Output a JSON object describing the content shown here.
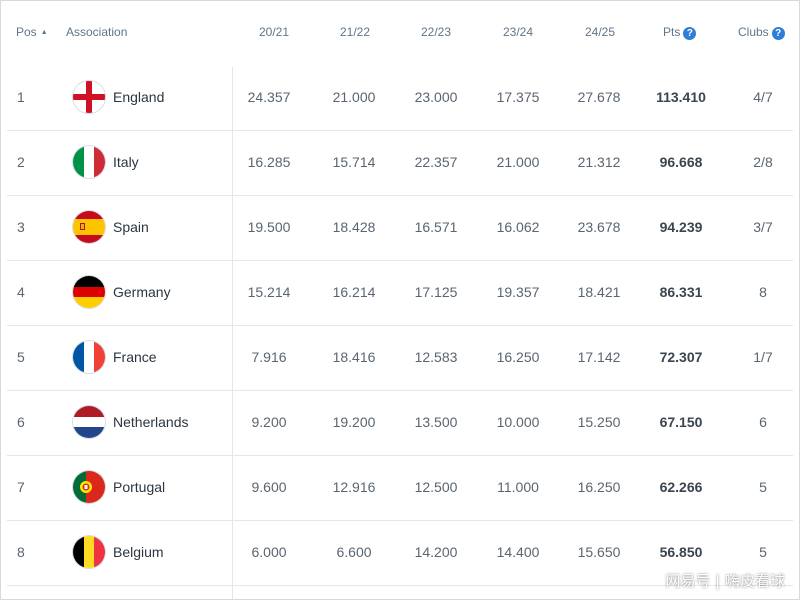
{
  "header": {
    "pos": "Pos",
    "association": "Association",
    "seasons": [
      "20/21",
      "21/22",
      "22/23",
      "23/24",
      "24/25"
    ],
    "pts": "Pts",
    "clubs": "Clubs"
  },
  "rows": [
    {
      "pos": "1",
      "name": "England",
      "flag": "england-flag-icon",
      "s1": "24.357",
      "s2": "21.000",
      "s3": "23.000",
      "s4": "17.375",
      "s5": "27.678",
      "pts": "113.410",
      "clubs": "4/7"
    },
    {
      "pos": "2",
      "name": "Italy",
      "flag": "italy-flag-icon",
      "s1": "16.285",
      "s2": "15.714",
      "s3": "22.357",
      "s4": "21.000",
      "s5": "21.312",
      "pts": "96.668",
      "clubs": "2/8"
    },
    {
      "pos": "3",
      "name": "Spain",
      "flag": "spain-flag-icon",
      "s1": "19.500",
      "s2": "18.428",
      "s3": "16.571",
      "s4": "16.062",
      "s5": "23.678",
      "pts": "94.239",
      "clubs": "3/7"
    },
    {
      "pos": "4",
      "name": "Germany",
      "flag": "germany-flag-icon",
      "s1": "15.214",
      "s2": "16.214",
      "s3": "17.125",
      "s4": "19.357",
      "s5": "18.421",
      "pts": "86.331",
      "clubs": "8"
    },
    {
      "pos": "5",
      "name": "France",
      "flag": "france-flag-icon",
      "s1": "7.916",
      "s2": "18.416",
      "s3": "12.583",
      "s4": "16.250",
      "s5": "17.142",
      "pts": "72.307",
      "clubs": "1/7"
    },
    {
      "pos": "6",
      "name": "Netherlands",
      "flag": "netherlands-flag-icon",
      "s1": "9.200",
      "s2": "19.200",
      "s3": "13.500",
      "s4": "10.000",
      "s5": "15.250",
      "pts": "67.150",
      "clubs": "6"
    },
    {
      "pos": "7",
      "name": "Portugal",
      "flag": "portugal-flag-icon",
      "s1": "9.600",
      "s2": "12.916",
      "s3": "12.500",
      "s4": "11.000",
      "s5": "16.250",
      "pts": "62.266",
      "clubs": "5"
    },
    {
      "pos": "8",
      "name": "Belgium",
      "flag": "belgium-flag-icon",
      "s1": "6.000",
      "s2": "6.600",
      "s3": "14.200",
      "s4": "14.400",
      "s5": "15.650",
      "pts": "56.850",
      "clubs": "5"
    }
  ],
  "watermark": "网易号 | 嗨皮看球",
  "colors": {
    "header_text": "#61758a",
    "help_icon": "#2e7ed8",
    "row_divider": "#e3e6ea"
  }
}
